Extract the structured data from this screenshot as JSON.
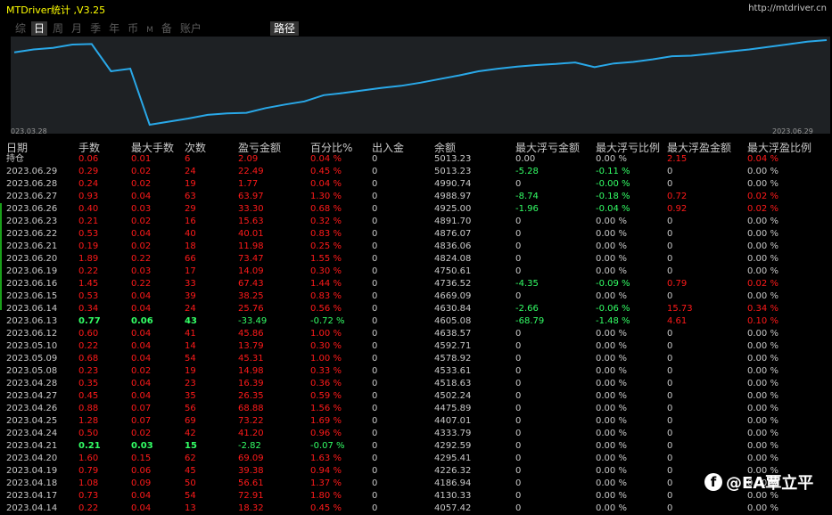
{
  "app": {
    "title": "MTDriver统计 ,V3.25",
    "url": "http://mtdriver.cn"
  },
  "tabs": [
    "综",
    "日",
    "周",
    "月",
    "季",
    "年",
    "币",
    "M",
    "备",
    "账户"
  ],
  "path_tab": "路径",
  "chart": {
    "start_label": "023.03.28",
    "end_label": "2023.06.29",
    "line_color": "#29a8e8",
    "values": [
      4185,
      4240,
      4270,
      4335,
      4345,
      3820,
      3870,
      2790,
      2850,
      2910,
      2980,
      3010,
      3020,
      3110,
      3180,
      3240,
      3360,
      3400,
      3450,
      3500,
      3540,
      3600,
      3670,
      3740,
      3820,
      3870,
      3910,
      3940,
      3960,
      3990,
      3900,
      3970,
      4000,
      4050,
      4110,
      4120,
      4160,
      4200,
      4240,
      4290,
      4340,
      4390,
      4420
    ]
  },
  "table": {
    "headers": [
      "日期",
      "手数",
      "最大手数",
      "次数",
      "盈亏金额",
      "百分比%",
      "出入金",
      "余额",
      "最大浮亏金额",
      "最大浮亏比例",
      "最大浮盈金额",
      "最大浮盈比例"
    ],
    "rows": [
      [
        "持仓",
        "0.06",
        "0.01",
        "6",
        "2.09",
        "0.04 %",
        "0",
        "5013.23",
        "0.00",
        "0.00 %",
        "2.15",
        "0.04 %"
      ],
      [
        "2023.06.29",
        "0.29",
        "0.02",
        "24",
        "22.49",
        "0.45 %",
        "0",
        "5013.23",
        "-5.28",
        "-0.11 %",
        "0",
        "0.00 %"
      ],
      [
        "2023.06.28",
        "0.24",
        "0.02",
        "19",
        "1.77",
        "0.04 %",
        "0",
        "4990.74",
        "0",
        "-0.00 %",
        "0",
        "0.00 %"
      ],
      [
        "2023.06.27",
        "0.93",
        "0.04",
        "63",
        "63.97",
        "1.30 %",
        "0",
        "4988.97",
        "-8.74",
        "-0.18 %",
        "0.72",
        "0.02 %"
      ],
      [
        "2023.06.26",
        "0.40",
        "0.03",
        "29",
        "33.30",
        "0.68 %",
        "0",
        "4925.00",
        "-1.96",
        "-0.04 %",
        "0.92",
        "0.02 %"
      ],
      [
        "2023.06.23",
        "0.21",
        "0.02",
        "16",
        "15.63",
        "0.32 %",
        "0",
        "4891.70",
        "0",
        "0.00 %",
        "0",
        "0.00 %"
      ],
      [
        "2023.06.22",
        "0.53",
        "0.04",
        "40",
        "40.01",
        "0.83 %",
        "0",
        "4876.07",
        "0",
        "0.00 %",
        "0",
        "0.00 %"
      ],
      [
        "2023.06.21",
        "0.19",
        "0.02",
        "18",
        "11.98",
        "0.25 %",
        "0",
        "4836.06",
        "0",
        "0.00 %",
        "0",
        "0.00 %"
      ],
      [
        "2023.06.20",
        "1.89",
        "0.22",
        "66",
        "73.47",
        "1.55 %",
        "0",
        "4824.08",
        "0",
        "0.00 %",
        "0",
        "0.00 %"
      ],
      [
        "2023.06.19",
        "0.22",
        "0.03",
        "17",
        "14.09",
        "0.30 %",
        "0",
        "4750.61",
        "0",
        "0.00 %",
        "0",
        "0.00 %"
      ],
      [
        "2023.06.16",
        "1.45",
        "0.22",
        "33",
        "67.43",
        "1.44 %",
        "0",
        "4736.52",
        "-4.35",
        "-0.09 %",
        "0.79",
        "0.02 %"
      ],
      [
        "2023.06.15",
        "0.53",
        "0.04",
        "39",
        "38.25",
        "0.83 %",
        "0",
        "4669.09",
        "0",
        "0.00 %",
        "0",
        "0.00 %"
      ],
      [
        "2023.06.14",
        "0.34",
        "0.04",
        "24",
        "25.76",
        "0.56 %",
        "0",
        "4630.84",
        "-2.66",
        "-0.06 %",
        "15.73",
        "0.34 %"
      ],
      [
        "2023.06.13",
        "0.77",
        "0.06",
        "43",
        "-33.49",
        "-0.72 %",
        "0",
        "4605.08",
        "-68.79",
        "-1.48 %",
        "4.61",
        "0.10 %"
      ],
      [
        "2023.06.12",
        "0.60",
        "0.04",
        "41",
        "45.86",
        "1.00 %",
        "0",
        "4638.57",
        "0",
        "0.00 %",
        "0",
        "0.00 %"
      ],
      [
        "2023.05.10",
        "0.22",
        "0.04",
        "14",
        "13.79",
        "0.30 %",
        "0",
        "4592.71",
        "0",
        "0.00 %",
        "0",
        "0.00 %"
      ],
      [
        "2023.05.09",
        "0.68",
        "0.04",
        "54",
        "45.31",
        "1.00 %",
        "0",
        "4578.92",
        "0",
        "0.00 %",
        "0",
        "0.00 %"
      ],
      [
        "2023.05.08",
        "0.23",
        "0.02",
        "19",
        "14.98",
        "0.33 %",
        "0",
        "4533.61",
        "0",
        "0.00 %",
        "0",
        "0.00 %"
      ],
      [
        "2023.04.28",
        "0.35",
        "0.04",
        "23",
        "16.39",
        "0.36 %",
        "0",
        "4518.63",
        "0",
        "0.00 %",
        "0",
        "0.00 %"
      ],
      [
        "2023.04.27",
        "0.45",
        "0.04",
        "35",
        "26.35",
        "0.59 %",
        "0",
        "4502.24",
        "0",
        "0.00 %",
        "0",
        "0.00 %"
      ],
      [
        "2023.04.26",
        "0.88",
        "0.07",
        "56",
        "68.88",
        "1.56 %",
        "0",
        "4475.89",
        "0",
        "0.00 %",
        "0",
        "0.00 %"
      ],
      [
        "2023.04.25",
        "1.28",
        "0.07",
        "69",
        "73.22",
        "1.69 %",
        "0",
        "4407.01",
        "0",
        "0.00 %",
        "0",
        "0.00 %"
      ],
      [
        "2023.04.24",
        "0.50",
        "0.02",
        "42",
        "41.20",
        "0.96 %",
        "0",
        "4333.79",
        "0",
        "0.00 %",
        "0",
        "0.00 %"
      ],
      [
        "2023.04.21",
        "0.21",
        "0.03",
        "15",
        "-2.82",
        "-0.07 %",
        "0",
        "4292.59",
        "0",
        "0.00 %",
        "0",
        "0.00 %"
      ],
      [
        "2023.04.20",
        "1.60",
        "0.15",
        "62",
        "69.09",
        "1.63 %",
        "0",
        "4295.41",
        "0",
        "0.00 %",
        "0",
        "0.00 %"
      ],
      [
        "2023.04.19",
        "0.79",
        "0.06",
        "45",
        "39.38",
        "0.94 %",
        "0",
        "4226.32",
        "0",
        "0.00 %",
        "0",
        "0.00 %"
      ],
      [
        "2023.04.18",
        "1.08",
        "0.09",
        "50",
        "56.61",
        "1.37 %",
        "0",
        "4186.94",
        "0",
        "0.00 %",
        "0",
        "0.00 %"
      ],
      [
        "2023.04.17",
        "0.73",
        "0.04",
        "54",
        "72.91",
        "1.80 %",
        "0",
        "4130.33",
        "0",
        "0.00 %",
        "0",
        "0.00 %"
      ],
      [
        "2023.04.14",
        "0.22",
        "0.04",
        "13",
        "18.32",
        "0.45 %",
        "0",
        "4057.42",
        "0",
        "0.00 %",
        "0",
        "0.00 %"
      ]
    ]
  },
  "colors": {
    "profit": "#ff1a1a",
    "loss": "#33ff66",
    "neutral": "#c8c8c8",
    "title": "#ffff00"
  },
  "watermark": {
    "icon": "facebook-icon",
    "text": "@EA覃立平"
  }
}
